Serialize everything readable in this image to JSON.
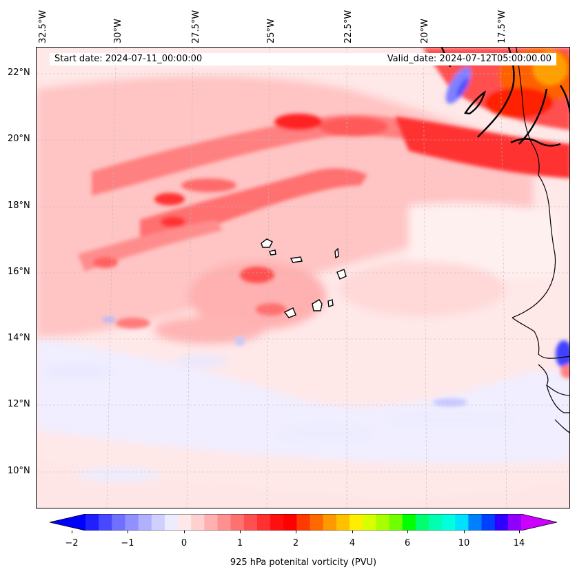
{
  "map": {
    "start_date": "Start date: 2024-07-11_00:00:00",
    "valid_date": "Valid_date: 2024-07-12T05:00:00.00",
    "lon_labels": [
      "32.5°W",
      "30°W",
      "27.5°W",
      "25°W",
      "22.5°W",
      "20°W",
      "17.5°W"
    ],
    "lat_labels": [
      "22°N",
      "20°N",
      "18°N",
      "16°N",
      "14°N",
      "12°N",
      "10°N"
    ],
    "colors": {
      "ocean_background": "#ffe8e8",
      "coastline": "#000000"
    }
  },
  "colorbar": {
    "title": "925 hPa potenital vorticity (PVU)",
    "tick_labels": [
      "−2",
      "−1",
      "0",
      "1",
      "2",
      "4",
      "6",
      "10",
      "14"
    ],
    "colors": [
      "#0000ff",
      "#2020ff",
      "#4848ff",
      "#7070ff",
      "#9090ff",
      "#b0b0ff",
      "#d0d0ff",
      "#ececff",
      "#ffe8e8",
      "#ffd0d0",
      "#ffb0b0",
      "#ff9090",
      "#ff7070",
      "#ff5050",
      "#ff3030",
      "#ff1010",
      "#ff0000",
      "#ff3a00",
      "#ff6a00",
      "#ff9900",
      "#ffc000",
      "#ffee00",
      "#d8ff00",
      "#a8ff00",
      "#70ff00",
      "#00ff00",
      "#00ff70",
      "#00ffb0",
      "#00ffdd",
      "#00e0ff",
      "#0080ff",
      "#0040ff",
      "#3000ff",
      "#9000ff",
      "#cc00ff"
    ]
  }
}
